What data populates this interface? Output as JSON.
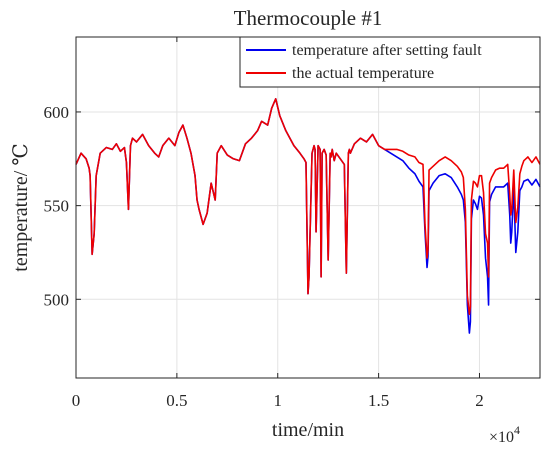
{
  "chart_data": {
    "type": "line",
    "title": "Thermocouple #1",
    "xlabel": "time/min",
    "ylabel": "temperature/ ℃",
    "x_exponent_label": "×10",
    "x_exponent_power": "4",
    "xlim": [
      0,
      23000
    ],
    "ylim": [
      458,
      640
    ],
    "x_ticks": [
      0,
      5000,
      10000,
      15000,
      20000
    ],
    "x_tick_labels": [
      "0",
      "0.5",
      "1",
      "1.5",
      "2"
    ],
    "y_ticks": [
      500,
      550,
      600
    ],
    "y_tick_labels": [
      "500",
      "550",
      "600"
    ],
    "grid": true,
    "legend_position": "top-right",
    "series": [
      {
        "name": "temperature after setting fault",
        "color": "#0000ee",
        "x": [
          0,
          250,
          500,
          650,
          700,
          800,
          900,
          1000,
          1200,
          1500,
          1800,
          2000,
          2200,
          2400,
          2500,
          2600,
          2700,
          2800,
          3000,
          3300,
          3600,
          3900,
          4100,
          4300,
          4600,
          4900,
          5100,
          5300,
          5500,
          5700,
          5900,
          6000,
          6100,
          6300,
          6500,
          6700,
          6900,
          7000,
          7200,
          7500,
          7800,
          8100,
          8400,
          8700,
          9000,
          9200,
          9500,
          9700,
          9900,
          10100,
          10400,
          10800,
          11100,
          11300,
          11400,
          11500,
          11550,
          11700,
          11800,
          11850,
          11900,
          12000,
          12100,
          12150,
          12200,
          12300,
          12400,
          12500,
          12600,
          12650,
          12700,
          12800,
          12900,
          13100,
          13300,
          13400,
          13500,
          13550,
          13600,
          13800,
          14100,
          14400,
          14700,
          15000,
          15300,
          15600,
          15900,
          16200,
          16500,
          16800,
          17000,
          17200,
          17300,
          17400,
          17450,
          17500,
          17700,
          18000,
          18300,
          18600,
          18900,
          19100,
          19200,
          19300,
          19400,
          19500,
          19550,
          19600,
          19700,
          19800,
          19900,
          20000,
          20100,
          20200,
          20300,
          20400,
          20450,
          20500,
          20600,
          20800,
          21000,
          21200,
          21400,
          21500,
          21550,
          21600,
          21700,
          21800,
          21900,
          22000,
          22100,
          22200,
          22400,
          22600,
          22800,
          23000
        ],
        "y": [
          572,
          578,
          575,
          570,
          566,
          524,
          535,
          566,
          578,
          581,
          580,
          583,
          579,
          581,
          573,
          548,
          582,
          586,
          584,
          588,
          582,
          578,
          576,
          582,
          586,
          582,
          589,
          593,
          586,
          578,
          566,
          553,
          548,
          540,
          546,
          562,
          553,
          578,
          582,
          577,
          575,
          574,
          583,
          586,
          590,
          595,
          593,
          602,
          607,
          598,
          590,
          582,
          578,
          575,
          573,
          503,
          512,
          578,
          582,
          580,
          536,
          582,
          580,
          512,
          578,
          580,
          577,
          521,
          578,
          576,
          580,
          574,
          578,
          575,
          572,
          514,
          578,
          580,
          578,
          583,
          586,
          584,
          588,
          582,
          580,
          578,
          576,
          574,
          570,
          567,
          563,
          560,
          536,
          517,
          523,
          558,
          562,
          566,
          567,
          565,
          560,
          556,
          553,
          541,
          497,
          482,
          488,
          543,
          553,
          551,
          548,
          555,
          554,
          545,
          522,
          512,
          497,
          552,
          556,
          560,
          560,
          560,
          562,
          545,
          530,
          536,
          560,
          525,
          536,
          558,
          560,
          563,
          564,
          561,
          564,
          560
        ]
      },
      {
        "name": "the actual temperature",
        "color": "#ee0000",
        "x": [
          0,
          250,
          500,
          650,
          700,
          800,
          900,
          1000,
          1200,
          1500,
          1800,
          2000,
          2200,
          2400,
          2500,
          2600,
          2700,
          2800,
          3000,
          3300,
          3600,
          3900,
          4100,
          4300,
          4600,
          4900,
          5100,
          5300,
          5500,
          5700,
          5900,
          6000,
          6100,
          6300,
          6500,
          6700,
          6900,
          7000,
          7200,
          7500,
          7800,
          8100,
          8400,
          8700,
          9000,
          9200,
          9500,
          9700,
          9900,
          10100,
          10400,
          10800,
          11100,
          11300,
          11400,
          11500,
          11550,
          11700,
          11800,
          11850,
          11900,
          12000,
          12100,
          12150,
          12200,
          12300,
          12400,
          12500,
          12600,
          12650,
          12700,
          12800,
          12900,
          13100,
          13300,
          13400,
          13500,
          13550,
          13600,
          13800,
          14100,
          14400,
          14700,
          15000,
          15300,
          15600,
          15900,
          16200,
          16500,
          16800,
          17000,
          17200,
          17300,
          17400,
          17450,
          17500,
          17700,
          18000,
          18300,
          18600,
          18900,
          19100,
          19200,
          19300,
          19400,
          19500,
          19550,
          19600,
          19700,
          19800,
          19900,
          20000,
          20100,
          20200,
          20300,
          20400,
          20450,
          20500,
          20600,
          20800,
          21000,
          21200,
          21400,
          21500,
          21550,
          21600,
          21700,
          21800,
          21900,
          22000,
          22100,
          22200,
          22400,
          22600,
          22800,
          23000
        ],
        "y": [
          572,
          578,
          575,
          570,
          566,
          524,
          535,
          566,
          578,
          581,
          580,
          583,
          579,
          581,
          573,
          548,
          582,
          586,
          584,
          588,
          582,
          578,
          576,
          582,
          586,
          582,
          589,
          593,
          586,
          578,
          566,
          553,
          548,
          540,
          546,
          562,
          553,
          578,
          582,
          577,
          575,
          574,
          583,
          586,
          590,
          595,
          593,
          602,
          607,
          598,
          590,
          582,
          578,
          575,
          573,
          503,
          512,
          578,
          582,
          580,
          536,
          582,
          580,
          512,
          578,
          580,
          577,
          521,
          578,
          576,
          580,
          574,
          578,
          575,
          572,
          514,
          578,
          580,
          578,
          583,
          586,
          584,
          588,
          582,
          580,
          580,
          580,
          579,
          577,
          576,
          573,
          572,
          540,
          522,
          527,
          569,
          571,
          574,
          576,
          574,
          571,
          568,
          565,
          548,
          502,
          492,
          496,
          553,
          563,
          562,
          560,
          566,
          566,
          557,
          535,
          530,
          512,
          562,
          565,
          569,
          570,
          570,
          572,
          556,
          545,
          548,
          569,
          541,
          549,
          567,
          571,
          574,
          576,
          573,
          576,
          572
        ]
      }
    ]
  }
}
